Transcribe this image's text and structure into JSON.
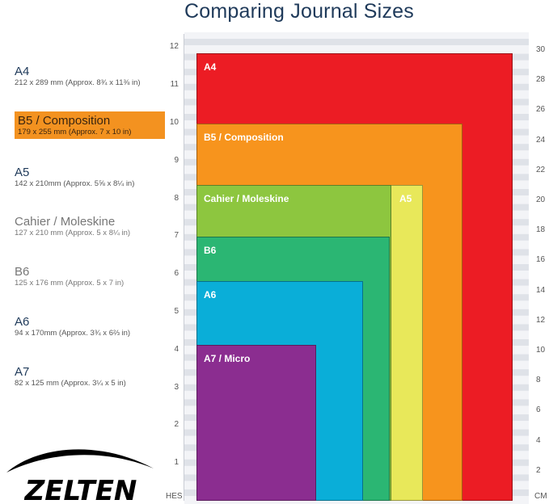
{
  "title": "Comparing Journal Sizes",
  "legend": [
    {
      "name": "A4",
      "dims": "212 x 289 mm (Approx. 8¾ x 11⅜ in)",
      "style": "",
      "top": 0
    },
    {
      "name": "B5 / Composition",
      "dims": "179 x 255 mm (Approx. 7 x 10 in)",
      "style": "hl",
      "top": 0
    },
    {
      "name": "A5",
      "dims": "142 x 210mm (Approx. 5⅝ x 8¼ in)",
      "style": "",
      "top": 0
    },
    {
      "name": "Cahier / Moleskine",
      "dims": "127 x 210 mm (Approx. 5 x 8¼ in)",
      "style": "gray",
      "top": 0
    },
    {
      "name": "B6",
      "dims": "125 x 176 mm (Approx. 5 x 7 in)",
      "style": "gray",
      "top": 0
    },
    {
      "name": "A6",
      "dims": "94 x 170mm (Approx. 3¾ x 6⅔ in)",
      "style": "",
      "top": 0
    },
    {
      "name": "A7",
      "dims": "82 x 125 mm (Approx. 3¼ x 5 in)",
      "style": "",
      "top": 0
    }
  ],
  "sheets": [
    {
      "label": "A4",
      "color": "#ec1c24",
      "width_cm": 31.5,
      "height_cm": 29.8
    },
    {
      "label": "B5 / Composition",
      "color": "#f7941d",
      "width_cm": 26.5,
      "height_cm": 25.1
    },
    {
      "label": "A5",
      "color": "#e8e85a",
      "width_cm": 22.5,
      "height_cm": 21.0
    },
    {
      "label": "Cahier / Moleskine",
      "color": "#8dc63f",
      "width_cm": 19.4,
      "height_cm": 21.0
    },
    {
      "label": "B6",
      "color": "#2bb673",
      "width_cm": 19.2,
      "height_cm": 17.6
    },
    {
      "label": "A6",
      "color": "#0aaed8",
      "width_cm": 16.6,
      "height_cm": 14.6
    },
    {
      "label": "A7 / Micro",
      "color": "#8b2d90",
      "width_cm": 11.9,
      "height_cm": 10.4
    }
  ],
  "inch_ticks": [
    "1",
    "2",
    "3",
    "4",
    "5",
    "6",
    "7",
    "8",
    "9",
    "10",
    "11",
    "12"
  ],
  "cm_ticks": [
    "2",
    "4",
    "6",
    "8",
    "10",
    "12",
    "14",
    "16",
    "18",
    "20",
    "22",
    "24",
    "26",
    "28",
    "30"
  ],
  "left_unit": "HES",
  "right_unit": "CM",
  "brand": "ZELTEN"
}
